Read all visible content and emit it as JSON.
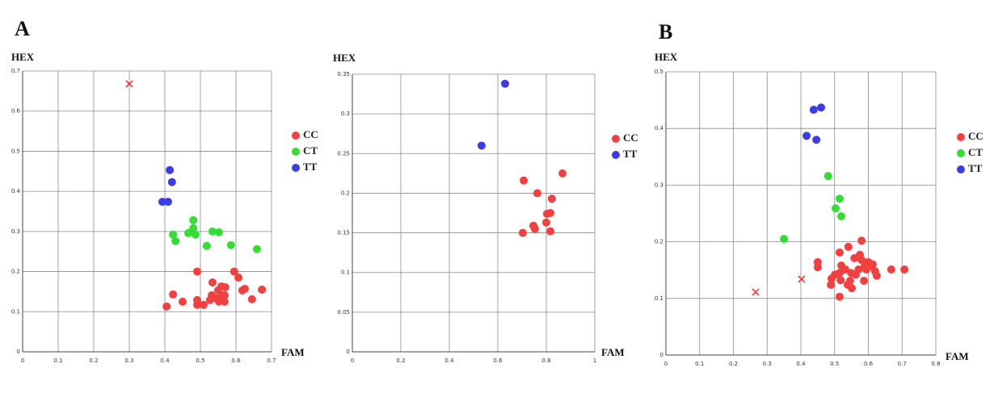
{
  "chart_data": [
    {
      "type": "scatter",
      "panel_label": "A",
      "x_label": "FAM",
      "y_label": "HEX",
      "xlim": [
        0,
        0.7
      ],
      "ylim": [
        0,
        0.7
      ],
      "xticks": [
        0,
        0.1,
        0.2,
        0.3,
        0.4,
        0.5,
        0.6,
        0.7
      ],
      "yticks": [
        0,
        0.1,
        0.2,
        0.3,
        0.4,
        0.5,
        0.6,
        0.7
      ],
      "grid": true,
      "series": [
        {
          "name": "CC",
          "color": "#f24040",
          "marker": "circle",
          "x": [
            0.405,
            0.423,
            0.45,
            0.491,
            0.491,
            0.491,
            0.509,
            0.534,
            0.532,
            0.545,
            0.55,
            0.559,
            0.57,
            0.561,
            0.552,
            0.568,
            0.568,
            0.595,
            0.607,
            0.618,
            0.625,
            0.645,
            0.673,
            0.527
          ],
          "values": [
            0.113,
            0.143,
            0.125,
            0.2,
            0.129,
            0.117,
            0.117,
            0.173,
            0.141,
            0.133,
            0.153,
            0.163,
            0.161,
            0.141,
            0.125,
            0.125,
            0.141,
            0.2,
            0.185,
            0.153,
            0.157,
            0.131,
            0.155,
            0.129
          ]
        },
        {
          "name": "CT",
          "color": "#33dd33",
          "marker": "circle",
          "x": [
            0.48,
            0.423,
            0.43,
            0.466,
            0.48,
            0.486,
            0.534,
            0.552,
            0.518,
            0.586,
            0.659
          ],
          "values": [
            0.328,
            0.292,
            0.276,
            0.296,
            0.308,
            0.292,
            0.3,
            0.298,
            0.264,
            0.266,
            0.256
          ]
        },
        {
          "name": "TT",
          "color": "#3c3ce6",
          "marker": "circle",
          "x": [
            0.414,
            0.42,
            0.393,
            0.409
          ],
          "values": [
            0.453,
            0.423,
            0.374,
            0.374
          ]
        },
        {
          "color": "#e83030",
          "marker": "x",
          "x": [
            0.3
          ],
          "values": [
            0.668
          ]
        }
      ]
    },
    {
      "type": "scatter",
      "x_label": "FAM",
      "y_label": "HEX",
      "xlim": [
        0,
        1
      ],
      "ylim": [
        0,
        0.35
      ],
      "xticks": [
        0,
        0.2,
        0.4,
        0.6,
        0.8,
        1
      ],
      "yticks": [
        0,
        0.05,
        0.1,
        0.15,
        0.2,
        0.25,
        0.3,
        0.35
      ],
      "grid": true,
      "series": [
        {
          "name": "CC",
          "color": "#f24040",
          "marker": "circle",
          "x": [
            0.867,
            0.707,
            0.763,
            0.823,
            0.803,
            0.817,
            0.8,
            0.747,
            0.753,
            0.703,
            0.817
          ],
          "values": [
            0.225,
            0.216,
            0.2,
            0.193,
            0.174,
            0.175,
            0.163,
            0.159,
            0.155,
            0.15,
            0.152
          ]
        },
        {
          "name": "TT",
          "color": "#3c3ce6",
          "marker": "circle",
          "x": [
            0.63,
            0.533
          ],
          "values": [
            0.338,
            0.26
          ]
        }
      ]
    },
    {
      "type": "scatter",
      "panel_label": "B",
      "x_label": "FAM",
      "y_label": "HEX",
      "xlim": [
        0,
        0.8
      ],
      "ylim": [
        0,
        0.5
      ],
      "xticks": [
        0,
        0.1,
        0.2,
        0.3,
        0.4,
        0.5,
        0.6,
        0.7,
        0.8
      ],
      "yticks": [
        0,
        0.1,
        0.2,
        0.3,
        0.4,
        0.5
      ],
      "grid": true,
      "series": [
        {
          "name": "CC",
          "color": "#f24040",
          "marker": "circle",
          "x": [
            0.58,
            0.541,
            0.515,
            0.45,
            0.45,
            0.52,
            0.559,
            0.575,
            0.58,
            0.589,
            0.6,
            0.608,
            0.62,
            0.625,
            0.668,
            0.707,
            0.571,
            0.563,
            0.549,
            0.532,
            0.515,
            0.501,
            0.491,
            0.489,
            0.518,
            0.539,
            0.551,
            0.587,
            0.515,
            0.594,
            0.613,
            0.546
          ],
          "values": [
            0.202,
            0.191,
            0.181,
            0.164,
            0.155,
            0.158,
            0.171,
            0.177,
            0.168,
            0.157,
            0.164,
            0.157,
            0.148,
            0.14,
            0.151,
            0.151,
            0.151,
            0.142,
            0.145,
            0.151,
            0.145,
            0.142,
            0.135,
            0.124,
            0.132,
            0.124,
            0.118,
            0.131,
            0.103,
            0.151,
            0.16,
            0.131
          ]
        },
        {
          "name": "CT",
          "color": "#33dd33",
          "marker": "circle",
          "x": [
            0.481,
            0.515,
            0.52,
            0.503,
            0.35
          ],
          "values": [
            0.316,
            0.276,
            0.245,
            0.259,
            0.205
          ]
        },
        {
          "name": "TT",
          "color": "#3c3ce6",
          "marker": "circle",
          "x": [
            0.438,
            0.46,
            0.417,
            0.446
          ],
          "values": [
            0.433,
            0.437,
            0.387,
            0.38
          ]
        },
        {
          "color": "#e83030",
          "marker": "x",
          "x": [
            0.266,
            0.402
          ],
          "values": [
            0.111,
            0.134
          ]
        }
      ]
    }
  ]
}
